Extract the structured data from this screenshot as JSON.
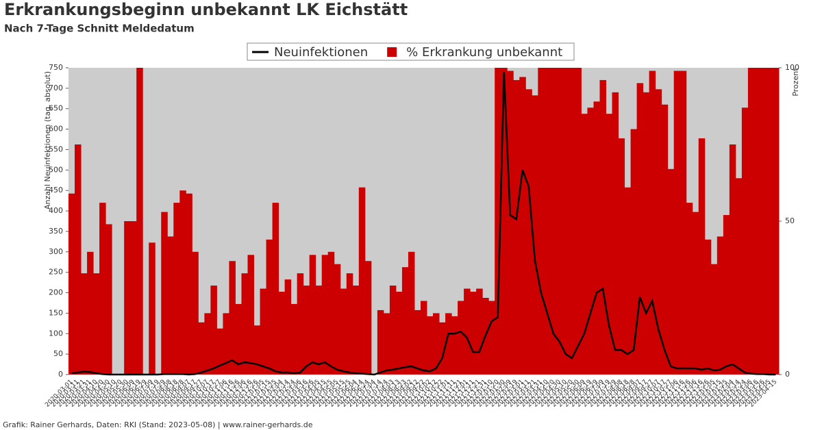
{
  "chart_data": {
    "type": "line",
    "title": "Erkrankungsbeginn unbekannt LK Eichstätt",
    "subtitle": "Nach 7-Tage Schnitt Meldedatum",
    "y_label": "Anzahl Neuinfektionen (tag. absolut)",
    "y2_label": "Prozent",
    "footer": "Grafik: Rainer Gerhards, Daten: RKI (Stand: 2023-05-08) | www.rainer-gerhards.de",
    "background": "#cccccc",
    "legend": "top",
    "categories": [
      "2020-03-01",
      "2020-03-11",
      "2020-03-21",
      "2020-03-31",
      "2020-04-10",
      "2020-04-20",
      "2020-04-30",
      "2020-05-10",
      "2020-05-20",
      "2020-05-30",
      "2020-06-09",
      "2020-06-19",
      "2020-06-29",
      "2020-07-09",
      "2020-07-19",
      "2020-07-29",
      "2020-08-08",
      "2020-08-18",
      "2020-08-28",
      "2020-09-07",
      "2020-09-17",
      "2020-09-27",
      "2020-10-07",
      "2020-10-17",
      "2020-10-27",
      "2020-11-06",
      "2020-11-16",
      "2020-11-26",
      "2020-12-06",
      "2020-12-16",
      "2020-12-26",
      "2021-01-05",
      "2021-01-15",
      "2021-01-25",
      "2021-02-04",
      "2021-02-14",
      "2021-02-24",
      "2021-03-06",
      "2021-03-16",
      "2021-03-26",
      "2021-04-05",
      "2021-04-15",
      "2021-04-25",
      "2021-05-05",
      "2021-05-15",
      "2021-05-25",
      "2021-06-04",
      "2021-06-14",
      "2021-06-24",
      "2021-07-04",
      "2021-07-14",
      "2021-07-24",
      "2021-08-03",
      "2021-08-13",
      "2021-08-23",
      "2021-09-02",
      "2021-09-12",
      "2021-09-22",
      "2021-10-02",
      "2021-10-12",
      "2021-10-22",
      "2021-11-01",
      "2021-11-11",
      "2021-11-21",
      "2021-12-01",
      "2021-12-11",
      "2021-12-21",
      "2021-12-31",
      "2022-01-10",
      "2022-01-20",
      "2022-01-30",
      "2022-02-09",
      "2022-02-19",
      "2022-03-01",
      "2022-03-11",
      "2022-03-21",
      "2022-03-31",
      "2022-04-10",
      "2022-04-20",
      "2022-04-30",
      "2022-05-10",
      "2022-05-20",
      "2022-05-30",
      "2022-06-09",
      "2022-06-19",
      "2022-06-29",
      "2022-07-09",
      "2022-07-19",
      "2022-07-29",
      "2022-08-08",
      "2022-08-18",
      "2022-08-28",
      "2022-09-07",
      "2022-09-17",
      "2022-09-27",
      "2022-10-07",
      "2022-10-17",
      "2022-10-27",
      "2022-11-06",
      "2022-11-16",
      "2022-11-26",
      "2022-12-06",
      "2022-12-16",
      "2022-12-26",
      "2023-01-05",
      "2023-01-15",
      "2023-01-25",
      "2023-02-04",
      "2023-02-14",
      "2023-02-24",
      "2023-03-06",
      "2023-03-16",
      "2023-03-26",
      "2023-04-05",
      "2023-04-15"
    ],
    "series": [
      {
        "name": "Neuinfektionen",
        "color": "#000000",
        "values": [
          3,
          5,
          7,
          6,
          3,
          1,
          0,
          0,
          0,
          0,
          0,
          0,
          0,
          0,
          0,
          1,
          1,
          1,
          1,
          0,
          1,
          5,
          10,
          15,
          22,
          28,
          35,
          25,
          30,
          28,
          25,
          20,
          15,
          8,
          5,
          5,
          3,
          5,
          20,
          30,
          25,
          30,
          20,
          12,
          8,
          5,
          3,
          2,
          1,
          0,
          5,
          10,
          12,
          15,
          18,
          20,
          15,
          10,
          8,
          15,
          40,
          100,
          100,
          105,
          90,
          55,
          55,
          95,
          130,
          140,
          740,
          390,
          380,
          500,
          460,
          280,
          200,
          150,
          100,
          80,
          50,
          40,
          70,
          100,
          150,
          200,
          210,
          120,
          60,
          60,
          50,
          60,
          190,
          150,
          180,
          110,
          60,
          20,
          15,
          15,
          15,
          15,
          12,
          15,
          10,
          12,
          20,
          25,
          15,
          5,
          2,
          1,
          1,
          0,
          0
        ]
      },
      {
        "name": "% Erkrankung unbekannt",
        "color": "#cc0000",
        "axis": "y2",
        "kind": "area",
        "values": [
          59,
          75,
          33,
          40,
          33,
          56,
          49,
          0,
          0,
          50,
          50,
          100,
          0,
          43,
          0,
          53,
          45,
          56,
          60,
          59,
          40,
          17,
          20,
          29,
          15,
          20,
          37,
          23,
          33,
          39,
          16,
          28,
          44,
          56,
          27,
          31,
          23,
          33,
          29,
          39,
          29,
          39,
          40,
          36,
          28,
          33,
          29,
          61,
          37,
          0,
          21,
          20,
          29,
          27,
          35,
          40,
          21,
          24,
          19,
          20,
          17,
          20,
          19,
          24,
          28,
          27,
          28,
          25,
          24,
          100,
          100,
          99,
          96,
          97,
          93,
          91,
          100,
          100,
          100,
          100,
          100,
          100,
          100,
          85,
          87,
          89,
          96,
          85,
          92,
          77,
          61,
          80,
          95,
          92,
          99,
          93,
          88,
          67,
          99,
          99,
          56,
          53,
          77,
          44,
          36,
          45,
          52,
          75,
          64,
          87,
          100,
          100,
          100,
          100,
          100
        ]
      }
    ],
    "ylim": [
      0,
      750
    ],
    "yticks": [
      0,
      50,
      100,
      150,
      200,
      250,
      300,
      350,
      400,
      450,
      500,
      550,
      600,
      650,
      700,
      750
    ],
    "y2lim": [
      0,
      100
    ],
    "y2ticks": [
      0,
      50,
      100
    ]
  }
}
